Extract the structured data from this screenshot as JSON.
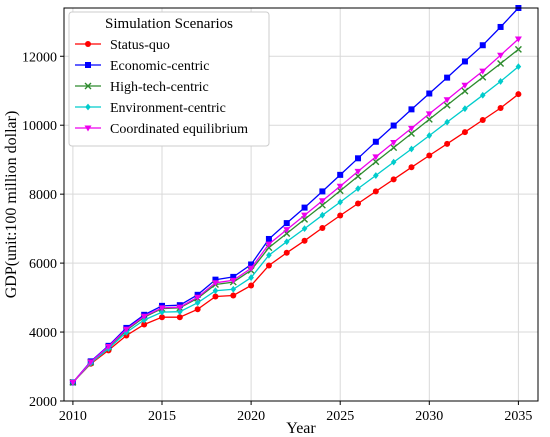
{
  "chart_data": {
    "type": "line",
    "title": "",
    "xlabel": "Year",
    "ylabel": "GDP(unit:100 million dollar)",
    "xlim": [
      2009.5,
      2036.1
    ],
    "ylim": [
      2000,
      13400
    ],
    "xticks": [
      2010,
      2015,
      2020,
      2025,
      2030,
      2035
    ],
    "xtick_labels": [
      "2010",
      "2015",
      "2020",
      "2025",
      "2030",
      "2035"
    ],
    "yticks": [
      2000,
      4000,
      6000,
      8000,
      10000,
      12000
    ],
    "ytick_labels": [
      "2000",
      "4000",
      "6000",
      "8000",
      "10000",
      "12000"
    ],
    "grid": true,
    "legend_title": "Simulation Scenarios",
    "legend_position": "top-left",
    "x": [
      2010,
      2011,
      2012,
      2013,
      2014,
      2015,
      2016,
      2017,
      2018,
      2019,
      2020,
      2021,
      2022,
      2023,
      2024,
      2025,
      2026,
      2027,
      2028,
      2029,
      2030,
      2031,
      2032,
      2033,
      2034,
      2035
    ],
    "series": [
      {
        "name": "Status-quo",
        "color": "#ff0000",
        "marker": "circle",
        "values": [
          2540,
          3080,
          3470,
          3900,
          4220,
          4430,
          4430,
          4660,
          5030,
          5060,
          5350,
          5930,
          6300,
          6650,
          7020,
          7380,
          7730,
          8080,
          8430,
          8780,
          9120,
          9460,
          9800,
          10150,
          10500,
          10900
        ]
      },
      {
        "name": "Economic-centric",
        "color": "#0000ff",
        "marker": "square",
        "values": [
          2540,
          3150,
          3600,
          4120,
          4500,
          4760,
          4780,
          5080,
          5520,
          5600,
          5960,
          6700,
          7160,
          7610,
          8080,
          8560,
          9040,
          9520,
          9990,
          10460,
          10920,
          11380,
          11850,
          12320,
          12850,
          13400
        ]
      },
      {
        "name": "High-tech-centric",
        "color": "#2e8b2e",
        "marker": "x",
        "values": [
          2540,
          3120,
          3560,
          4050,
          4430,
          4680,
          4700,
          4980,
          5380,
          5450,
          5790,
          6450,
          6860,
          7270,
          7680,
          8100,
          8520,
          8940,
          9350,
          9760,
          10170,
          10580,
          10990,
          11390,
          11790,
          12200
        ]
      },
      {
        "name": "Environment-centric",
        "color": "#00cccc",
        "marker": "diamond",
        "values": [
          2540,
          3100,
          3520,
          3990,
          4350,
          4580,
          4590,
          4850,
          5200,
          5240,
          5580,
          6230,
          6620,
          7000,
          7390,
          7770,
          8160,
          8540,
          8930,
          9310,
          9700,
          10090,
          10480,
          10870,
          11270,
          11700
        ]
      },
      {
        "name": "Coordinated equilibrium",
        "color": "#ee00ee",
        "marker": "triangle-down",
        "values": [
          2540,
          3130,
          3580,
          4080,
          4460,
          4700,
          4720,
          5010,
          5430,
          5500,
          5850,
          6550,
          6970,
          7390,
          7810,
          8230,
          8660,
          9080,
          9500,
          9910,
          10330,
          10740,
          11160,
          11570,
          12030,
          12500
        ]
      }
    ]
  }
}
